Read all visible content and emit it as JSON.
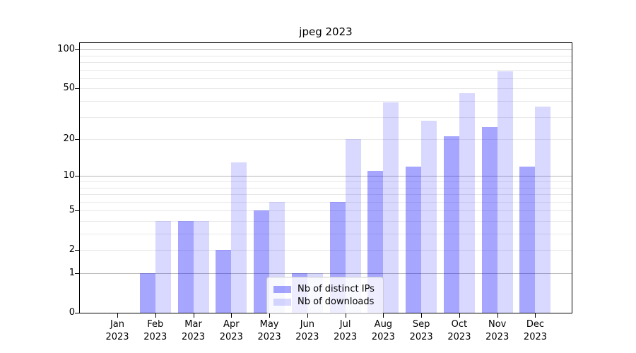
{
  "chart_data": {
    "type": "bar",
    "title": "jpeg 2023",
    "categories": [
      "Jan",
      "Feb",
      "Mar",
      "Apr",
      "May",
      "Jun",
      "Jul",
      "Aug",
      "Sep",
      "Oct",
      "Nov",
      "Dec"
    ],
    "x_year": "2023",
    "series": [
      {
        "name": "Nb of distinct IPs",
        "color": "rgba(0,0,255,0.35)",
        "values": [
          0,
          1,
          4,
          2,
          5,
          1,
          6,
          11,
          12,
          21,
          25,
          12
        ]
      },
      {
        "name": "Nb of downloads",
        "color": "rgba(0,0,255,0.15)",
        "values": [
          0,
          4,
          4,
          13,
          6,
          1,
          20,
          39,
          28,
          46,
          68,
          36
        ]
      }
    ],
    "yscale": "log1p",
    "ylim": [
      0,
      112
    ],
    "yticks": [
      {
        "label": "0",
        "value": 0
      },
      {
        "label": "1",
        "value": 1
      },
      {
        "label": "2",
        "value": 2
      },
      {
        "label": "5",
        "value": 5
      },
      {
        "label": "10",
        "value": 10
      },
      {
        "label": "20",
        "value": 20
      },
      {
        "label": "50",
        "value": 50
      },
      {
        "label": "100",
        "value": 100
      }
    ],
    "major_gridlines": [
      1,
      10,
      100
    ],
    "minor_gridlines": [
      2,
      3,
      4,
      5,
      6,
      7,
      8,
      9,
      20,
      30,
      40,
      50,
      60,
      70,
      80,
      90
    ],
    "grid": true,
    "legend_position": "lower center"
  }
}
